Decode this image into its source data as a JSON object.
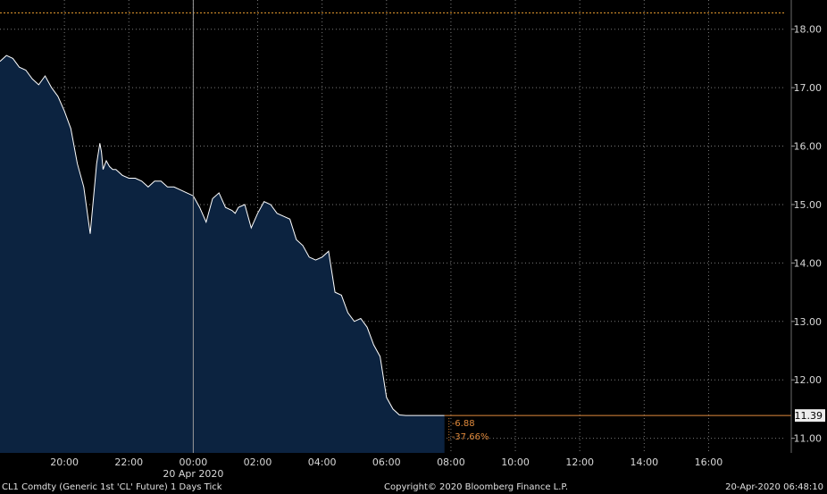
{
  "chart_data": {
    "type": "area",
    "ticker_caption": "CL1 Comdty (Generic 1st 'CL' Future) 1 Days  Tick",
    "copyright": "Copyright© 2020 Bloomberg Finance L.P.",
    "timestamp": "20-Apr-2020 06:48:10",
    "date_label": "20 Apr 2020",
    "x_tick_labels": [
      "20:00",
      "22:00",
      "00:00",
      "02:00",
      "04:00",
      "06:00",
      "08:00",
      "10:00",
      "12:00",
      "14:00",
      "16:00"
    ],
    "x_tick_hours": [
      -4,
      -2,
      0,
      2,
      4,
      6,
      8,
      10,
      12,
      14,
      16
    ],
    "xlim_hours": [
      -6.0,
      18.4
    ],
    "y_tick_labels": [
      "11.00",
      "12.00",
      "13.00",
      "14.00",
      "15.00",
      "16.00",
      "17.00",
      "18.00"
    ],
    "y_ticks": [
      11,
      12,
      13,
      14,
      15,
      16,
      17,
      18
    ],
    "ylim": [
      10.75,
      18.5
    ],
    "grid": true,
    "reference_line": {
      "value": 18.28,
      "color": "#f0a030"
    },
    "last_price": {
      "value": 11.39,
      "label": "11.39"
    },
    "change_labels": [
      "-6.88",
      "-37.66%"
    ],
    "colors": {
      "area": "#0c2340",
      "line": "#ffffff",
      "accent": "#e08a3c",
      "grid": "#7a7a7a"
    },
    "series": [
      {
        "x": [
          -6.0,
          -5.8,
          -5.6,
          -5.4,
          -5.2,
          -5.0,
          -4.8,
          -4.6,
          -4.4,
          -4.2,
          -4.0,
          -3.8,
          -3.6,
          -3.4,
          -3.2,
          -3.0,
          -2.9,
          -2.85,
          -2.8,
          -2.7,
          -2.6,
          -2.5,
          -2.4,
          -2.2,
          -2.0,
          -1.8,
          -1.6,
          -1.4,
          -1.2,
          -1.0,
          -0.8,
          -0.6,
          -0.4,
          -0.2,
          0.0,
          0.2,
          0.4,
          0.6,
          0.8,
          1.0,
          1.2,
          1.3,
          1.4,
          1.6,
          1.8,
          2.0,
          2.2,
          2.4,
          2.6,
          2.8,
          3.0,
          3.2,
          3.4,
          3.6,
          3.8,
          4.0,
          4.2,
          4.4,
          4.6,
          4.8,
          5.0,
          5.2,
          5.4,
          5.6,
          5.8,
          6.0,
          6.2,
          6.4,
          6.6,
          6.8,
          7.0,
          7.2,
          7.4,
          7.5,
          7.6,
          7.7,
          7.8
        ],
        "values": [
          17.45,
          17.55,
          17.5,
          17.35,
          17.3,
          17.15,
          17.05,
          17.2,
          17.0,
          16.85,
          16.6,
          16.3,
          15.7,
          15.3,
          14.5,
          15.7,
          16.05,
          15.9,
          15.6,
          15.75,
          15.65,
          15.6,
          15.6,
          15.5,
          15.45,
          15.45,
          15.4,
          15.3,
          15.4,
          15.4,
          15.3,
          15.3,
          15.25,
          15.2,
          15.15,
          14.95,
          14.7,
          15.1,
          15.2,
          14.95,
          14.9,
          14.85,
          14.95,
          15.0,
          14.6,
          14.85,
          15.05,
          15.0,
          14.85,
          14.8,
          14.75,
          14.4,
          14.3,
          14.1,
          14.05,
          14.1,
          14.2,
          13.5,
          13.45,
          13.15,
          13.0,
          13.05,
          12.9,
          12.6,
          12.4,
          11.7,
          11.5,
          11.4,
          11.39,
          11.39,
          11.39,
          11.39,
          11.39,
          11.39,
          11.39,
          11.39,
          11.39
        ]
      }
    ]
  }
}
